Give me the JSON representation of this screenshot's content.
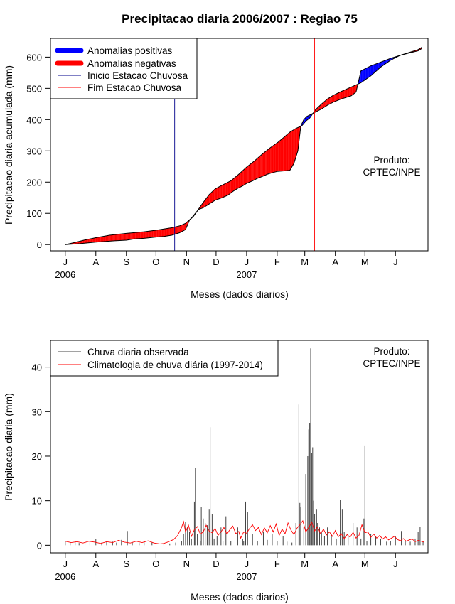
{
  "title": "Precipitacao diaria 2006/2007 : Regiao 75",
  "product_label": [
    "Produto:",
    "CPTEC/INPE"
  ],
  "x_months": [
    "J",
    "A",
    "S",
    "O",
    "N",
    "D",
    "J",
    "F",
    "M",
    "A",
    "M",
    "J"
  ],
  "x_years": [
    "2006",
    "2007"
  ],
  "chart_data": [
    {
      "type": "area",
      "title": "Precipitacao diaria 2006/2007 : Regiao 75",
      "xlabel": "Meses (dados diarios)",
      "ylabel": "Precipitacao diaria acumulada (mm)",
      "y_ticks": [
        "0",
        "100",
        "200",
        "300",
        "400",
        "500",
        "600"
      ],
      "ylim": [
        -20,
        660
      ],
      "xlim": [
        -15,
        368
      ],
      "legend_position": "top-left",
      "legend": [
        {
          "label": "Anomalias positivas",
          "color": "#0000ff",
          "style": "thick"
        },
        {
          "label": "Anomalias negativas",
          "color": "#ff0000",
          "style": "thick"
        },
        {
          "label": "Inicio Estacao Chuvosa",
          "color": "#00008b",
          "style": "line"
        },
        {
          "label": "Fim Estacao Chuvosa",
          "color": "#ff0000",
          "style": "line"
        }
      ],
      "rain_season_start_day": 111,
      "rain_season_end_day": 253,
      "observed_cumulative": [
        [
          0,
          0
        ],
        [
          15,
          3
        ],
        [
          31,
          8
        ],
        [
          50,
          12
        ],
        [
          62,
          14
        ],
        [
          70,
          18
        ],
        [
          80,
          20
        ],
        [
          92,
          24
        ],
        [
          100,
          26
        ],
        [
          108,
          30
        ],
        [
          116,
          38
        ],
        [
          122,
          48
        ],
        [
          126,
          78
        ],
        [
          130,
          90
        ],
        [
          135,
          112
        ],
        [
          140,
          118
        ],
        [
          146,
          130
        ],
        [
          152,
          142
        ],
        [
          159,
          150
        ],
        [
          165,
          158
        ],
        [
          170,
          170
        ],
        [
          175,
          180
        ],
        [
          180,
          188
        ],
        [
          184,
          196
        ],
        [
          190,
          204
        ],
        [
          195,
          212
        ],
        [
          200,
          218
        ],
        [
          205,
          225
        ],
        [
          210,
          230
        ],
        [
          215,
          234
        ],
        [
          222,
          236
        ],
        [
          228,
          238
        ],
        [
          232,
          260
        ],
        [
          236,
          300
        ],
        [
          239,
          380
        ],
        [
          242,
          400
        ],
        [
          245,
          410
        ],
        [
          250,
          418
        ],
        [
          255,
          426
        ],
        [
          260,
          434
        ],
        [
          266,
          446
        ],
        [
          272,
          456
        ],
        [
          280,
          466
        ],
        [
          290,
          476
        ],
        [
          295,
          488
        ],
        [
          300,
          556
        ],
        [
          310,
          572
        ],
        [
          320,
          584
        ],
        [
          330,
          596
        ],
        [
          340,
          606
        ],
        [
          350,
          614
        ],
        [
          358,
          620
        ],
        [
          362,
          628
        ]
      ],
      "climatology_cumulative": [
        [
          0,
          0
        ],
        [
          10,
          7
        ],
        [
          20,
          15
        ],
        [
          31,
          22
        ],
        [
          45,
          30
        ],
        [
          62,
          36
        ],
        [
          80,
          41
        ],
        [
          92,
          46
        ],
        [
          100,
          50
        ],
        [
          108,
          54
        ],
        [
          116,
          60
        ],
        [
          122,
          68
        ],
        [
          128,
          85
        ],
        [
          134,
          108
        ],
        [
          140,
          135
        ],
        [
          146,
          160
        ],
        [
          152,
          178
        ],
        [
          159,
          190
        ],
        [
          168,
          204
        ],
        [
          176,
          225
        ],
        [
          184,
          248
        ],
        [
          192,
          268
        ],
        [
          200,
          290
        ],
        [
          208,
          310
        ],
        [
          216,
          328
        ],
        [
          222,
          344
        ],
        [
          228,
          360
        ],
        [
          234,
          372
        ],
        [
          240,
          380
        ],
        [
          244,
          395
        ],
        [
          248,
          405
        ],
        [
          254,
          432
        ],
        [
          260,
          450
        ],
        [
          266,
          466
        ],
        [
          272,
          478
        ],
        [
          280,
          490
        ],
        [
          290,
          504
        ],
        [
          300,
          518
        ],
        [
          310,
          540
        ],
        [
          320,
          568
        ],
        [
          330,
          590
        ],
        [
          340,
          606
        ],
        [
          350,
          616
        ],
        [
          358,
          624
        ],
        [
          362,
          632
        ]
      ]
    },
    {
      "type": "bar",
      "title": "",
      "xlabel": "Meses (dados diarios)",
      "ylabel": "Precipitacao diaria (mm)",
      "y_ticks": [
        "0",
        "10",
        "20",
        "30",
        "40"
      ],
      "ylim": [
        -1.7,
        46
      ],
      "xlim": [
        -15,
        368
      ],
      "legend_position": "top-left",
      "legend": [
        {
          "label": "Chuva diaria observada",
          "color": "#444444"
        },
        {
          "label": "Climatologia de chuva diária (1997-2014)",
          "color": "#ff0000"
        }
      ],
      "observed_daily": [
        [
          0,
          0.8
        ],
        [
          5,
          0.6
        ],
        [
          10,
          0.9
        ],
        [
          14,
          0.5
        ],
        [
          20,
          0.7
        ],
        [
          25,
          1.0
        ],
        [
          31,
          1.4
        ],
        [
          37,
          0.6
        ],
        [
          42,
          0.9
        ],
        [
          48,
          0.8
        ],
        [
          52,
          0.6
        ],
        [
          57,
          1.2
        ],
        [
          63,
          3.2
        ],
        [
          68,
          0.7
        ],
        [
          75,
          0.5
        ],
        [
          80,
          0.9
        ],
        [
          88,
          0.6
        ],
        [
          95,
          2.6
        ],
        [
          100,
          0.5
        ],
        [
          106,
          0.4
        ],
        [
          112,
          0.6
        ],
        [
          118,
          1.0
        ],
        [
          120,
          2.5
        ],
        [
          122,
          5.2
        ],
        [
          124,
          4.0
        ],
        [
          126,
          3.0
        ],
        [
          128,
          1.5
        ],
        [
          131,
          9.8
        ],
        [
          132,
          17.3
        ],
        [
          134,
          2.5
        ],
        [
          137,
          1.0
        ],
        [
          138,
          8.6
        ],
        [
          140,
          6.0
        ],
        [
          142,
          5.0
        ],
        [
          144,
          4.5
        ],
        [
          146,
          8.0
        ],
        [
          147,
          26.5
        ],
        [
          149,
          7.0
        ],
        [
          151,
          1.5
        ],
        [
          154,
          2.0
        ],
        [
          158,
          4.0
        ],
        [
          160,
          1.0
        ],
        [
          163,
          6.5
        ],
        [
          168,
          1.0
        ],
        [
          175,
          4.0
        ],
        [
          180,
          1.5
        ],
        [
          181,
          1.0
        ],
        [
          183,
          9.8
        ],
        [
          185,
          7.5
        ],
        [
          190,
          2.5
        ],
        [
          195,
          1.0
        ],
        [
          201,
          3.0
        ],
        [
          205,
          1.2
        ],
        [
          210,
          2.5
        ],
        [
          215,
          1.0
        ],
        [
          221,
          2.0
        ],
        [
          225,
          0.8
        ],
        [
          230,
          0.6
        ],
        [
          234,
          5.0
        ],
        [
          237,
          31.6
        ],
        [
          238,
          9.5
        ],
        [
          239,
          8.5
        ],
        [
          242,
          4.0
        ],
        [
          244,
          16.0
        ],
        [
          246,
          20.0
        ],
        [
          247,
          26.0
        ],
        [
          248,
          27.5
        ],
        [
          249,
          44.2
        ],
        [
          250,
          20.8
        ],
        [
          251,
          22.0
        ],
        [
          252,
          10.0
        ],
        [
          253,
          7.0
        ],
        [
          255,
          8.0
        ],
        [
          256,
          5.0
        ],
        [
          258,
          4.0
        ],
        [
          260,
          3.0
        ],
        [
          263,
          2.0
        ],
        [
          266,
          4.0
        ],
        [
          270,
          2.5
        ],
        [
          275,
          1.5
        ],
        [
          279,
          10.2
        ],
        [
          281,
          8.0
        ],
        [
          283,
          3.0
        ],
        [
          287,
          2.0
        ],
        [
          292,
          5.0
        ],
        [
          296,
          4.0
        ],
        [
          300,
          1.5
        ],
        [
          303,
          6.0
        ],
        [
          304,
          22.4
        ],
        [
          306,
          1.0
        ],
        [
          310,
          2.5
        ],
        [
          315,
          2.0
        ],
        [
          320,
          1.5
        ],
        [
          326,
          0.8
        ],
        [
          330,
          1.0
        ],
        [
          335,
          2.0
        ],
        [
          341,
          3.2
        ],
        [
          345,
          1.0
        ],
        [
          350,
          0.8
        ],
        [
          355,
          1.5
        ],
        [
          358,
          3.0
        ],
        [
          360,
          4.2
        ],
        [
          363,
          1.0
        ]
      ],
      "climatology_daily": [
        [
          0,
          0.9
        ],
        [
          6,
          0.6
        ],
        [
          12,
          0.8
        ],
        [
          18,
          0.5
        ],
        [
          24,
          0.9
        ],
        [
          30,
          0.7
        ],
        [
          36,
          0.4
        ],
        [
          42,
          0.8
        ],
        [
          48,
          0.6
        ],
        [
          54,
          1.1
        ],
        [
          60,
          0.7
        ],
        [
          66,
          0.5
        ],
        [
          72,
          0.9
        ],
        [
          78,
          0.6
        ],
        [
          84,
          1.0
        ],
        [
          90,
          0.5
        ],
        [
          96,
          0.3
        ],
        [
          100,
          0.4
        ],
        [
          105,
          0.8
        ],
        [
          110,
          1.3
        ],
        [
          114,
          2.2
        ],
        [
          118,
          4.0
        ],
        [
          120,
          5.3
        ],
        [
          122,
          3.0
        ],
        [
          125,
          4.5
        ],
        [
          128,
          2.0
        ],
        [
          131,
          3.5
        ],
        [
          134,
          4.2
        ],
        [
          137,
          2.5
        ],
        [
          140,
          3.0
        ],
        [
          143,
          4.5
        ],
        [
          146,
          3.2
        ],
        [
          149,
          2.8
        ],
        [
          152,
          3.8
        ],
        [
          155,
          2.2
        ],
        [
          158,
          3.0
        ],
        [
          161,
          4.0
        ],
        [
          164,
          2.5
        ],
        [
          167,
          3.5
        ],
        [
          170,
          4.3
        ],
        [
          173,
          2.6
        ],
        [
          176,
          3.1
        ],
        [
          178,
          1.6
        ],
        [
          181,
          3.0
        ],
        [
          184,
          2.7
        ],
        [
          187,
          3.8
        ],
        [
          190,
          4.6
        ],
        [
          193,
          3.3
        ],
        [
          196,
          4.0
        ],
        [
          199,
          2.4
        ],
        [
          202,
          3.9
        ],
        [
          205,
          2.8
        ],
        [
          208,
          4.4
        ],
        [
          211,
          3.0
        ],
        [
          214,
          4.8
        ],
        [
          217,
          2.2
        ],
        [
          220,
          3.6
        ],
        [
          223,
          2.6
        ],
        [
          226,
          5.0
        ],
        [
          229,
          3.4
        ],
        [
          232,
          2.4
        ],
        [
          235,
          3.8
        ],
        [
          238,
          4.6
        ],
        [
          241,
          5.5
        ],
        [
          244,
          3.0
        ],
        [
          247,
          4.0
        ],
        [
          250,
          5.2
        ],
        [
          253,
          3.2
        ],
        [
          256,
          4.1
        ],
        [
          259,
          2.6
        ],
        [
          262,
          3.6
        ],
        [
          265,
          2.3
        ],
        [
          268,
          3.0
        ],
        [
          271,
          2.0
        ],
        [
          274,
          3.3
        ],
        [
          277,
          1.9
        ],
        [
          280,
          2.6
        ],
        [
          283,
          1.5
        ],
        [
          286,
          2.4
        ],
        [
          289,
          1.8
        ],
        [
          292,
          2.9
        ],
        [
          295,
          1.6
        ],
        [
          298,
          2.2
        ],
        [
          301,
          4.6
        ],
        [
          304,
          2.8
        ],
        [
          307,
          3.0
        ],
        [
          310,
          1.8
        ],
        [
          313,
          2.5
        ],
        [
          316,
          1.6
        ],
        [
          319,
          2.2
        ],
        [
          322,
          1.4
        ],
        [
          325,
          1.9
        ],
        [
          328,
          1.2
        ],
        [
          331,
          1.6
        ],
        [
          334,
          2.0
        ],
        [
          337,
          1.3
        ],
        [
          340,
          1.0
        ],
        [
          343,
          1.5
        ],
        [
          346,
          0.9
        ],
        [
          349,
          1.2
        ],
        [
          352,
          1.4
        ],
        [
          355,
          0.8
        ],
        [
          358,
          1.1
        ],
        [
          361,
          0.9
        ],
        [
          364,
          0.7
        ]
      ]
    }
  ]
}
